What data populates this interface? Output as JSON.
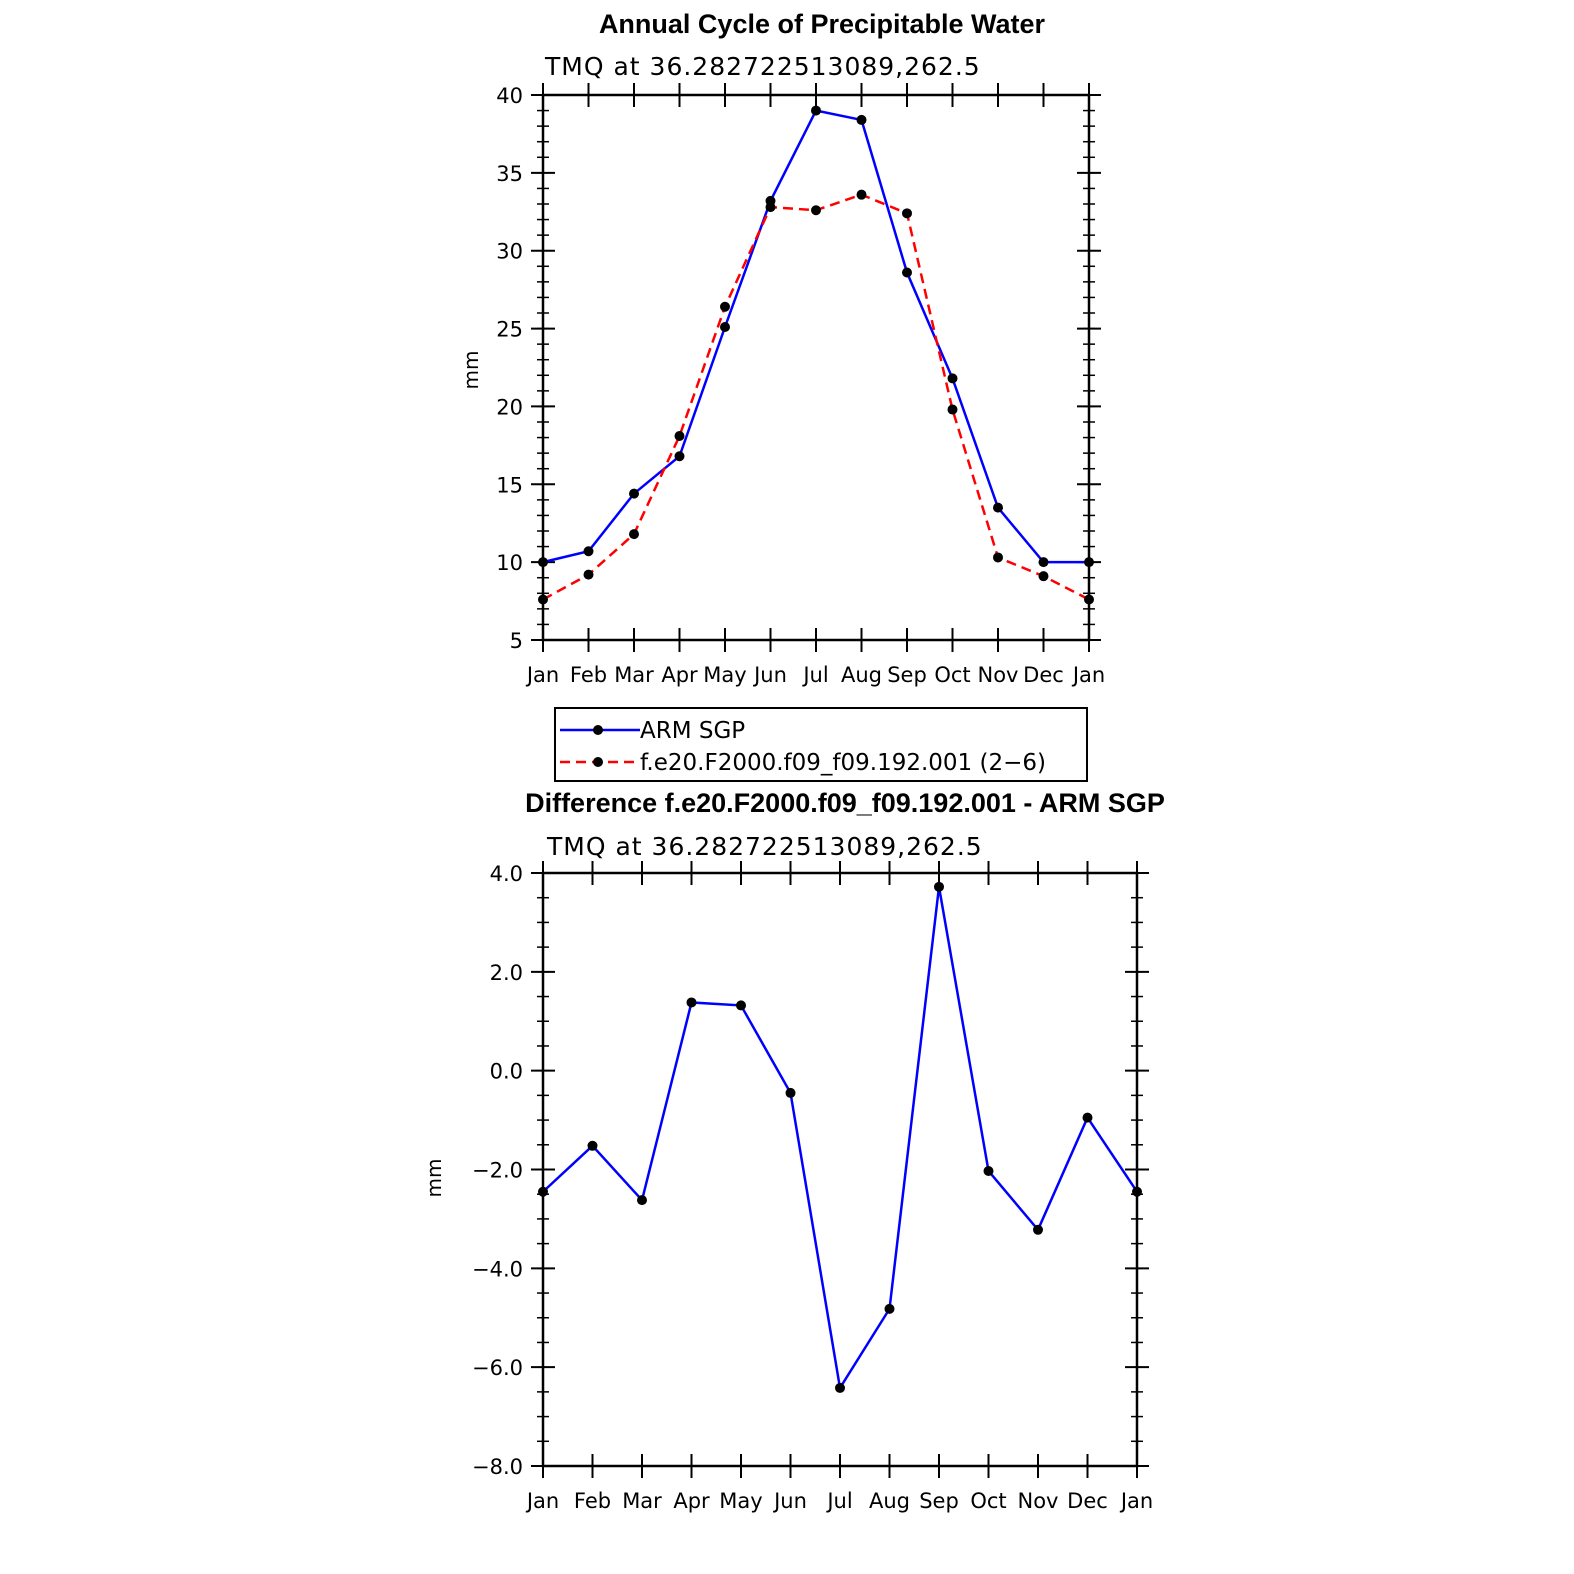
{
  "chart_data": [
    {
      "type": "line",
      "title": "Annual Cycle of Precipitable Water",
      "subtitle": "TMQ at 36.282722513089,262.5",
      "xlabel": "",
      "ylabel": "mm",
      "categories": [
        "Jan",
        "Feb",
        "Mar",
        "Apr",
        "May",
        "Jun",
        "Jul",
        "Aug",
        "Sep",
        "Oct",
        "Nov",
        "Dec",
        "Jan"
      ],
      "ylim": [
        5,
        40
      ],
      "yticks": [
        "5",
        "10",
        "15",
        "20",
        "25",
        "30",
        "35",
        "40"
      ],
      "series": [
        {
          "name": "ARM SGP",
          "color": "#0000ff",
          "dash": "solid",
          "values": [
            10.0,
            10.7,
            14.4,
            16.8,
            25.1,
            33.2,
            39.0,
            38.4,
            28.6,
            21.8,
            13.5,
            10.0,
            10.0
          ]
        },
        {
          "name": "f.e20.F2000.f09_f09.192.001 (2−6)",
          "color": "#ff0000",
          "dash": "dashed",
          "values": [
            7.6,
            9.2,
            11.8,
            18.1,
            26.4,
            32.8,
            32.6,
            33.6,
            32.4,
            19.8,
            10.3,
            9.1,
            7.6
          ]
        }
      ],
      "legend": "below"
    },
    {
      "type": "line",
      "title": "Difference f.e20.F2000.f09_f09.192.001 - ARM SGP",
      "subtitle": "TMQ at 36.282722513089,262.5",
      "xlabel": "",
      "ylabel": "mm",
      "categories": [
        "Jan",
        "Feb",
        "Mar",
        "Apr",
        "May",
        "Jun",
        "Jul",
        "Aug",
        "Sep",
        "Oct",
        "Nov",
        "Dec",
        "Jan"
      ],
      "ylim": [
        -8,
        4
      ],
      "yticks": [
        "−8.0",
        "−6.0",
        "−4.0",
        "−2.0",
        "0.0",
        "2.0",
        "4.0"
      ],
      "series": [
        {
          "name": "Difference",
          "color": "#0000ff",
          "dash": "solid",
          "values": [
            -2.45,
            -1.52,
            -2.62,
            1.38,
            1.32,
            -0.45,
            -6.42,
            -4.82,
            3.72,
            -2.03,
            -3.22,
            -0.95,
            -2.45
          ]
        }
      ]
    }
  ]
}
